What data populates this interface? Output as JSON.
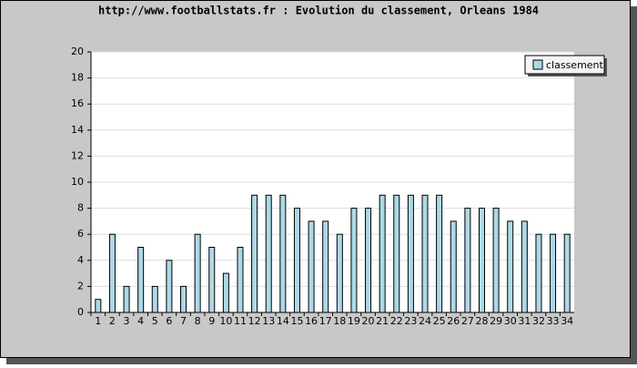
{
  "chart_data": {
    "type": "bar",
    "title": "http://www.footballstats.fr : Evolution du classement, Orleans 1984",
    "categories": [
      "1",
      "2",
      "3",
      "4",
      "5",
      "6",
      "7",
      "8",
      "9",
      "10",
      "11",
      "12",
      "13",
      "14",
      "15",
      "16",
      "17",
      "18",
      "19",
      "20",
      "21",
      "22",
      "23",
      "24",
      "25",
      "26",
      "27",
      "28",
      "29",
      "30",
      "31",
      "32",
      "33",
      "34"
    ],
    "series": [
      {
        "name": "classement",
        "color": "#add8e6",
        "values": [
          1,
          6,
          2,
          5,
          2,
          4,
          2,
          6,
          5,
          3,
          5,
          9,
          9,
          9,
          8,
          7,
          7,
          6,
          8,
          8,
          9,
          9,
          9,
          9,
          9,
          7,
          8,
          8,
          8,
          7,
          7,
          6,
          6,
          6
        ]
      }
    ],
    "ylim": [
      0,
      20
    ],
    "yticks": [
      0,
      2,
      4,
      6,
      8,
      10,
      12,
      14,
      16,
      18,
      20
    ],
    "grid": true,
    "legend": "top-right"
  }
}
